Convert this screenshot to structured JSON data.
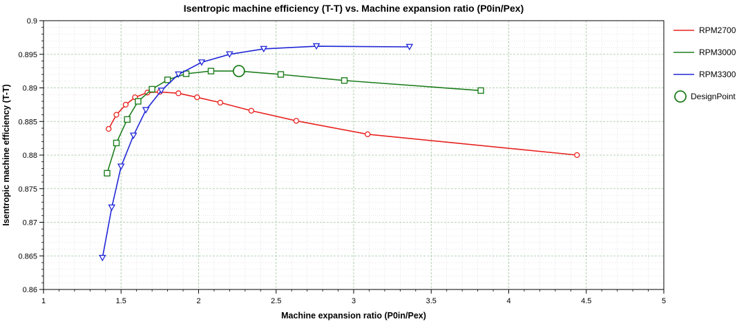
{
  "chart_data": {
    "type": "line",
    "title": "Isentropic machine efficiency (T-T) vs. Machine expansion ratio (P0in/Pex)",
    "xlabel": "Machine expansion ratio (P0in/Pex)",
    "ylabel": "Isentropic machine efficiency (T-T)",
    "xlim": [
      1,
      5
    ],
    "ylim": [
      0.86,
      0.9
    ],
    "xticks": [
      "1",
      "1.5",
      "2",
      "2.5",
      "3",
      "3.5",
      "4",
      "4.5",
      "5"
    ],
    "yticks": [
      "0.86",
      "0.865",
      "0.87",
      "0.875",
      "0.88",
      "0.885",
      "0.89",
      "0.895",
      "0.9"
    ],
    "grid": true,
    "legend_position": "right",
    "series": [
      {
        "name": "RPM2700",
        "color": "#e8211e",
        "marker": "circle",
        "x": [
          1.42,
          1.47,
          1.53,
          1.59,
          1.67,
          1.75,
          1.87,
          1.99,
          2.14,
          2.34,
          2.63,
          3.09,
          4.44
        ],
        "y": [
          0.8839,
          0.886,
          0.8875,
          0.8886,
          0.8893,
          0.8894,
          0.8892,
          0.8886,
          0.8878,
          0.8866,
          0.8851,
          0.8831,
          0.88
        ]
      },
      {
        "name": "RPM3000",
        "color": "#1d7d1d",
        "marker": "square",
        "x": [
          1.41,
          1.47,
          1.54,
          1.61,
          1.7,
          1.8,
          1.92,
          2.08,
          2.26,
          2.53,
          2.94,
          3.82
        ],
        "y": [
          0.8773,
          0.8818,
          0.8853,
          0.888,
          0.8898,
          0.8912,
          0.8921,
          0.8925,
          0.8925,
          0.892,
          0.8911,
          0.8896
        ]
      },
      {
        "name": "RPM3300",
        "color": "#1f26d6",
        "marker": "triangle-down",
        "x": [
          1.38,
          1.44,
          1.5,
          1.58,
          1.66,
          1.76,
          1.87,
          2.02,
          2.2,
          2.42,
          2.76,
          3.36
        ],
        "y": [
          0.8647,
          0.8722,
          0.8783,
          0.8829,
          0.8867,
          0.8896,
          0.892,
          0.8938,
          0.895,
          0.8958,
          0.8962,
          0.8961
        ]
      }
    ],
    "design_point": {
      "name": "DesignPoint",
      "x": 2.26,
      "y": 0.8925,
      "color": "#1d7d1d",
      "marker": "circle-large"
    }
  }
}
